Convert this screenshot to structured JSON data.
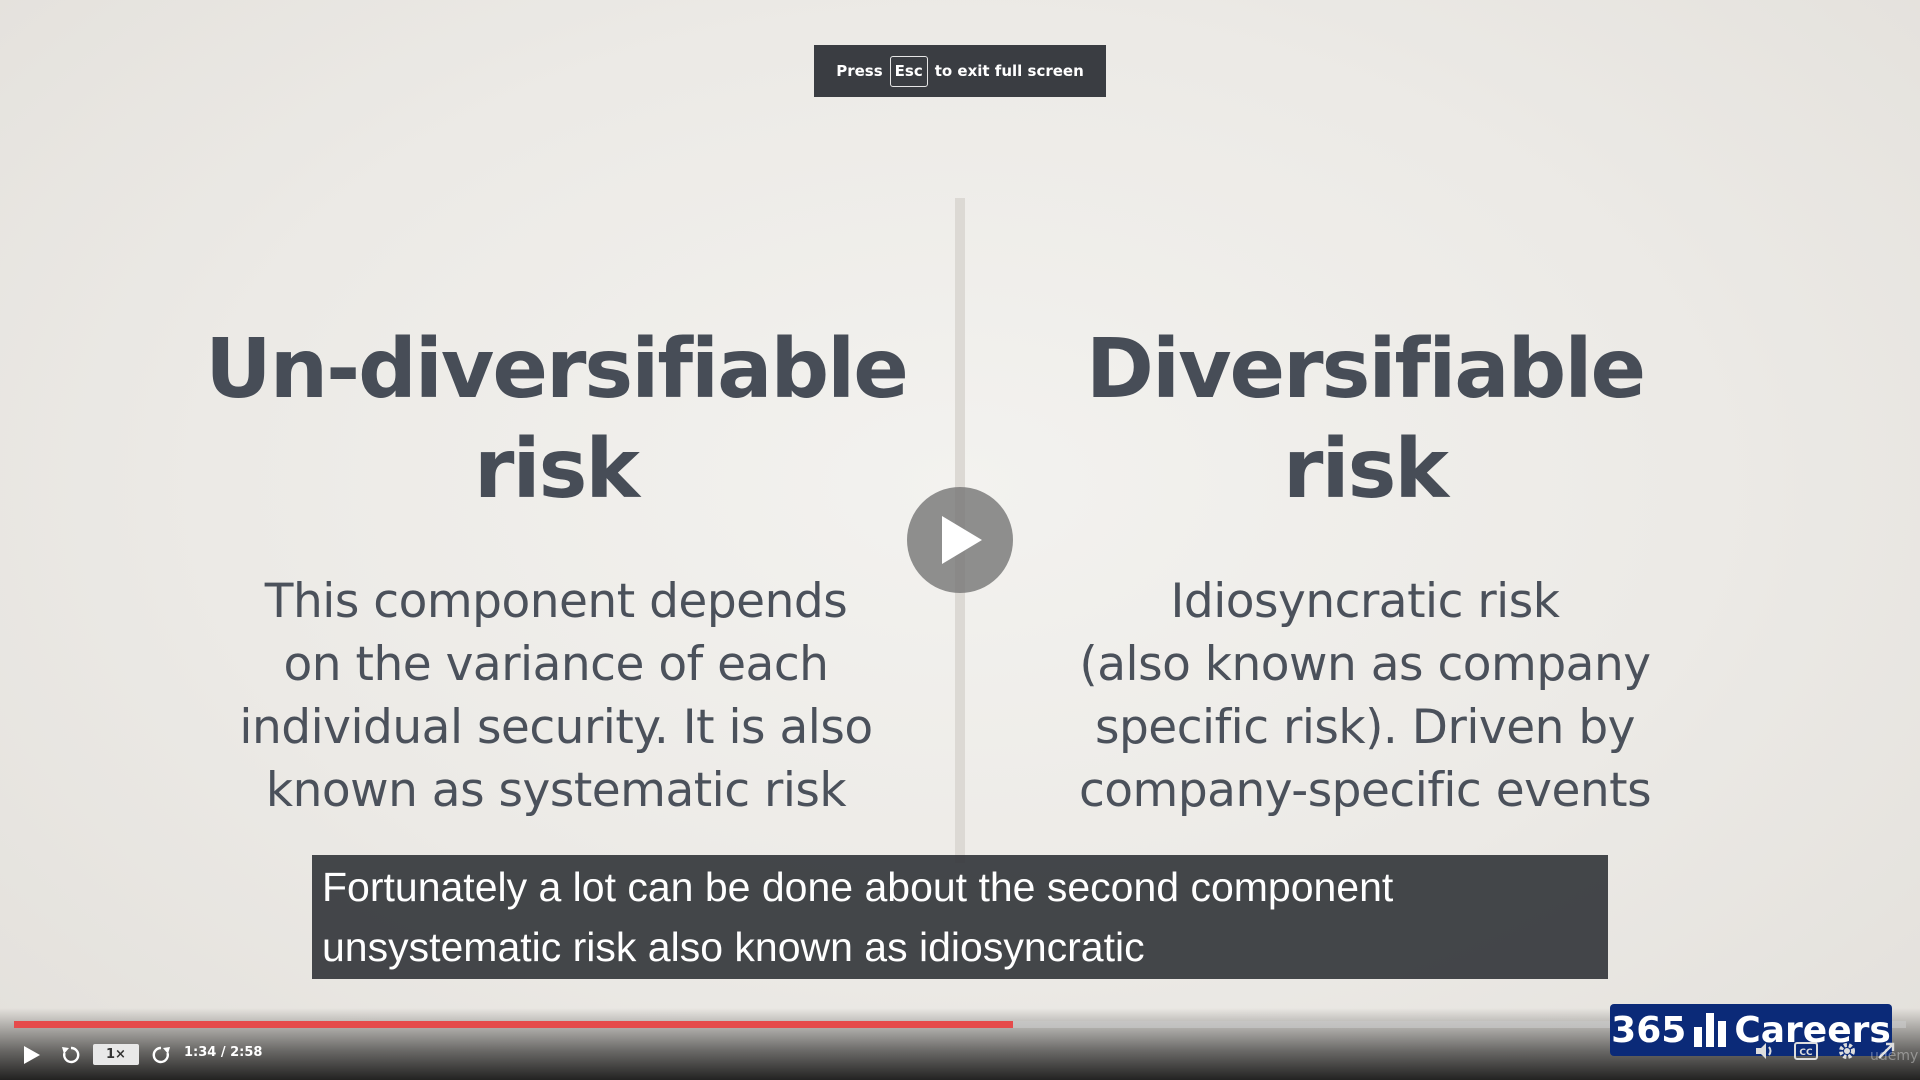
{
  "fullscreen_hint": {
    "before": "Press",
    "key": "Esc",
    "after": "to exit full screen"
  },
  "slide": {
    "left": {
      "heading_lines": [
        "Un-diversifiable",
        "risk"
      ],
      "body_lines": [
        "This component depends",
        "on the variance of each",
        "individual security. It is also",
        "known as systematic risk"
      ]
    },
    "right": {
      "heading_lines": [
        "Diversifiable",
        "risk"
      ],
      "body_lines": [
        "Idiosyncratic risk",
        "(also known as company",
        "specific risk). Driven by",
        "company-specific events"
      ]
    }
  },
  "caption": {
    "lines": [
      "Fortunately a lot can be done about the second component",
      "unsystematic risk also known as idiosyncratic"
    ]
  },
  "player": {
    "speed_label": "1×",
    "time": "1:34 / 2:58",
    "progress_fraction": 0.528,
    "accent_color": "#e54b4b",
    "icons": [
      "play-icon",
      "rewind-icon",
      "forward-icon",
      "volume-icon",
      "captions-icon",
      "settings-icon",
      "fullscreen-icon"
    ]
  },
  "brand": {
    "number": "365",
    "name": "Careers",
    "color": "#0b2a78"
  },
  "watermark": "udemy"
}
